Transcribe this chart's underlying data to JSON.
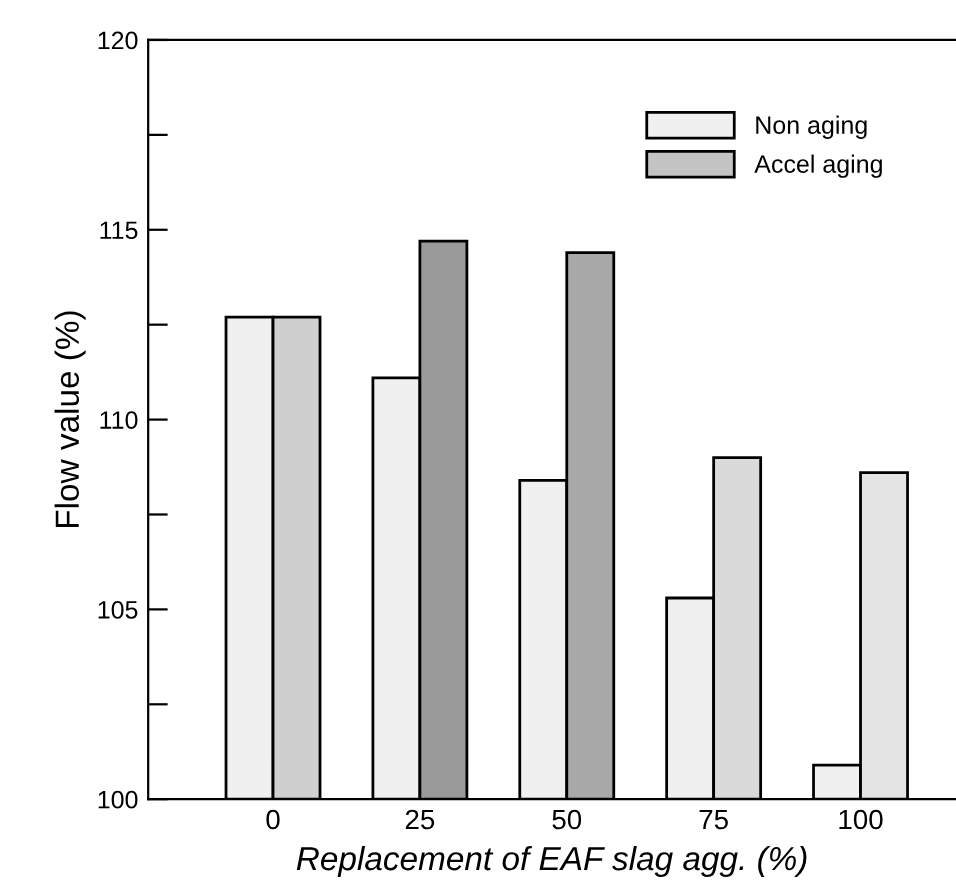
{
  "chart_data": {
    "type": "bar",
    "xlabel": "Replacement of EAF slag agg. (%)",
    "ylabel": "Flow value (%)",
    "categories": [
      "0",
      "25",
      "50",
      "75",
      "100"
    ],
    "series": [
      {
        "name": "Non aging",
        "color": "#f0f0f0",
        "values": [
          112.7,
          111.1,
          108.4,
          105.3,
          100.9
        ]
      },
      {
        "name": "Accel aging",
        "color": "#c4c4c4",
        "colors": [
          "#cfcfcf",
          "#9a9a9a",
          "#a8a8a8",
          "#dadada",
          "#e4e4e4"
        ],
        "values": [
          112.7,
          114.7,
          114.4,
          109.0,
          108.6
        ]
      }
    ],
    "ylim": [
      100,
      120
    ],
    "yticks": [
      100,
      {
        "value": 102.5,
        "label": null
      },
      105,
      {
        "value": 107.5,
        "label": null
      },
      110,
      {
        "value": 112.5,
        "label": null
      },
      115,
      {
        "value": 117.5,
        "label": null
      },
      120
    ],
    "grid": false,
    "legend": "top right"
  }
}
